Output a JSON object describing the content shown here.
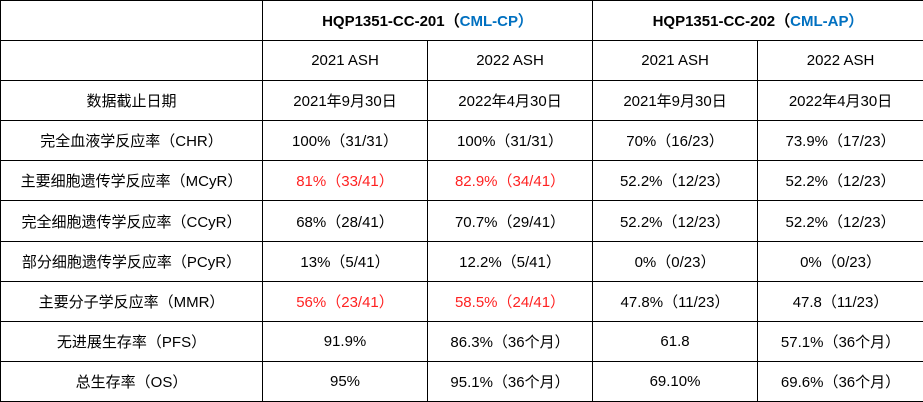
{
  "table": {
    "trials": [
      {
        "name": "HQP1351-CC-201（",
        "highlight": "CML-CP）"
      },
      {
        "name": "HQP1351-CC-202（",
        "highlight": "CML-AP）"
      }
    ],
    "session_headers": [
      "2021 ASH",
      "2022 ASH",
      "2021 ASH",
      "2022 ASH"
    ],
    "rows": [
      {
        "label": "数据截止日期",
        "cells": [
          {
            "text": "2021年9月30日"
          },
          {
            "text": "2022年4月30日"
          },
          {
            "text": "2021年9月30日"
          },
          {
            "text": "2022年4月30日"
          }
        ]
      },
      {
        "label": "完全血液学反应率（CHR）",
        "cells": [
          {
            "text": "100%（31/31）"
          },
          {
            "text": "100%（31/31）"
          },
          {
            "text": "70%（16/23）"
          },
          {
            "text": "73.9%（17/23）"
          }
        ]
      },
      {
        "label": "主要细胞遗传学反应率（MCyR）",
        "cells": [
          {
            "text": "81%（33/41）",
            "red": true
          },
          {
            "text": "82.9%（34/41）",
            "red": true
          },
          {
            "text": "52.2%（12/23）"
          },
          {
            "text": "52.2%（12/23）"
          }
        ]
      },
      {
        "label": "完全细胞遗传学反应率（CCyR）",
        "cells": [
          {
            "text": "68%（28/41）"
          },
          {
            "text": "70.7%（29/41）"
          },
          {
            "text": "52.2%（12/23）"
          },
          {
            "text": "52.2%（12/23）"
          }
        ]
      },
      {
        "label": "部分细胞遗传学反应率（PCyR）",
        "cells": [
          {
            "text": "13%（5/41）"
          },
          {
            "text": "12.2%（5/41）"
          },
          {
            "text": "0%（0/23）"
          },
          {
            "text": "0%（0/23）"
          }
        ]
      },
      {
        "label": "主要分子学反应率（MMR）",
        "cells": [
          {
            "text": "56%（23/41）",
            "red": true
          },
          {
            "text": "58.5%（24/41）",
            "red": true
          },
          {
            "text": "47.8%（11/23）"
          },
          {
            "text": "47.8（11/23）"
          }
        ]
      },
      {
        "label": "无进展生存率（PFS）",
        "cells": [
          {
            "text": "91.9%"
          },
          {
            "text": "86.3%（36个月）"
          },
          {
            "text": "61.8"
          },
          {
            "text": "57.1%（36个月）"
          }
        ]
      },
      {
        "label": "总生存率（OS）",
        "cells": [
          {
            "text": "95%"
          },
          {
            "text": "95.1%（36个月）"
          },
          {
            "text": "69.10%"
          },
          {
            "text": "69.6%（36个月）"
          }
        ]
      }
    ],
    "colors": {
      "highlight_blue": "#0070C0",
      "emphasis_red": "#FF2222",
      "border": "#000000",
      "text": "#000000",
      "background": "#FFFFFF"
    }
  }
}
